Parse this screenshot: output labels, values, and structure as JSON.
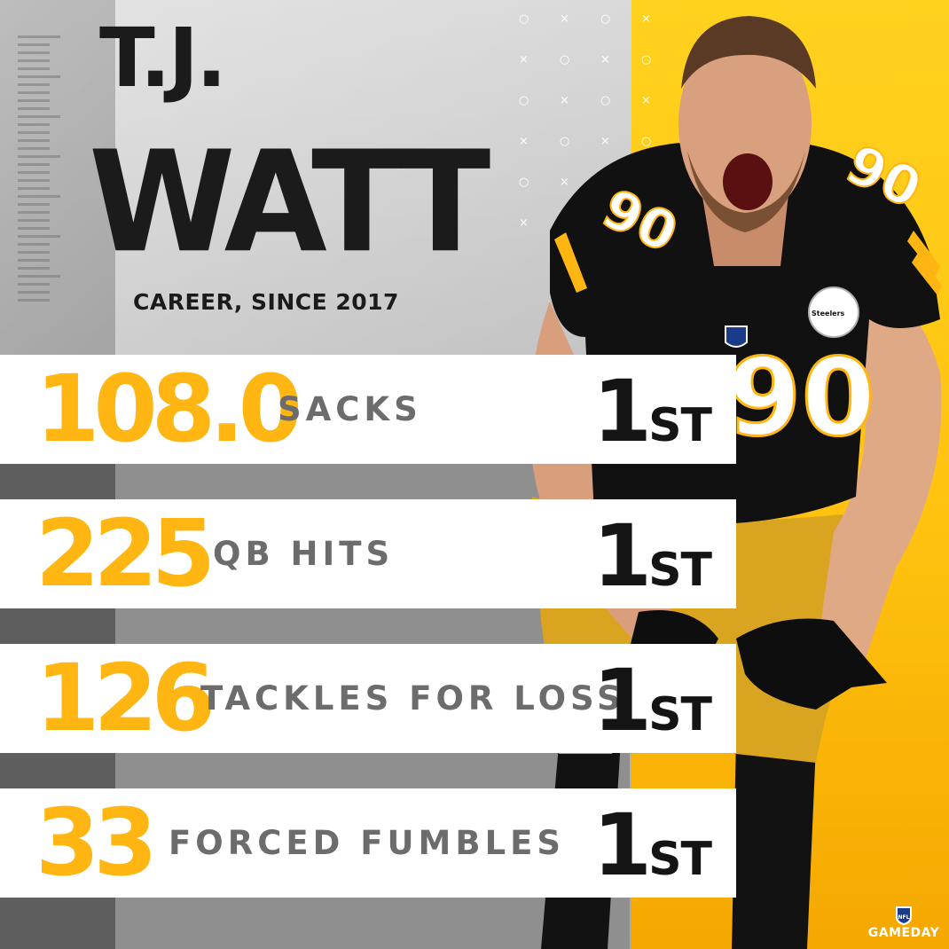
{
  "player": {
    "first_name": "T.J.",
    "last_name": "WATT",
    "jersey_number": "90",
    "team_patch_text": "Steelers"
  },
  "subtitle": "CAREER, SINCE 2017",
  "stats": [
    {
      "value": "108.0",
      "label": "SACKS",
      "rank_number": "1",
      "rank_suffix": "ST"
    },
    {
      "value": "225",
      "label": "QB HITS",
      "rank_number": "1",
      "rank_suffix": "ST"
    },
    {
      "value": "126",
      "label": "TACKLES FOR LOSS",
      "rank_number": "1",
      "rank_suffix": "ST"
    },
    {
      "value": "33",
      "label": "FORCED FUMBLES",
      "rank_number": "1",
      "rank_suffix": "ST"
    }
  ],
  "branding": {
    "shield_text": "NFL",
    "logo_text": "GAMEDAY"
  },
  "colors": {
    "gold": "#FFB612",
    "black": "#141414",
    "label_gray": "#6C6C6C",
    "panel_gold": "#FFC20F"
  }
}
